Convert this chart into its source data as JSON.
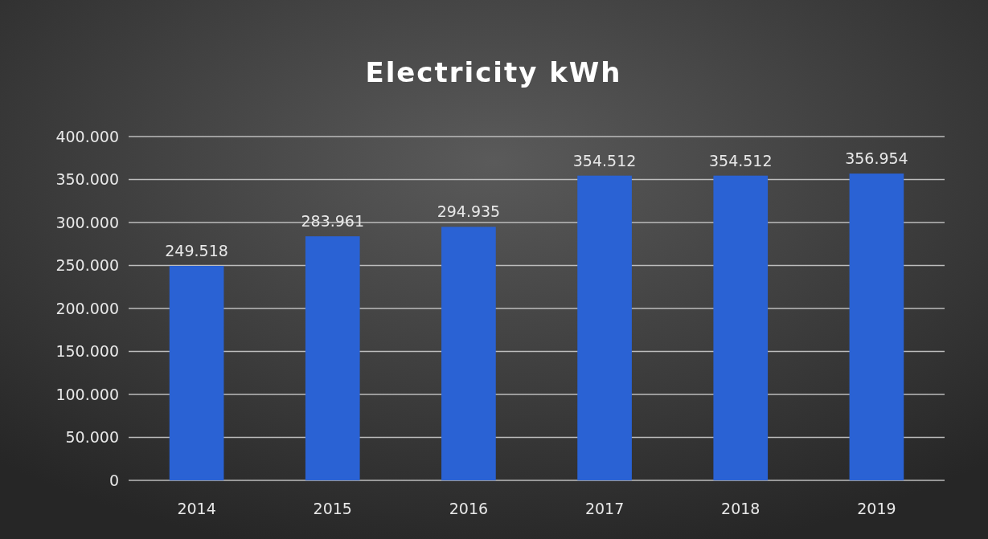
{
  "chart_data": {
    "type": "bar",
    "title": "Electricity kWh",
    "categories": [
      "2014",
      "2015",
      "2016",
      "2017",
      "2018",
      "2019"
    ],
    "values": [
      249518,
      283961,
      294935,
      354512,
      354512,
      356954
    ],
    "value_labels": [
      "249.518",
      "283.961",
      "294.935",
      "354.512",
      "354.512",
      "356.954"
    ],
    "color": "#2a62d4",
    "ylim": [
      0,
      400000
    ],
    "yticks": [
      0,
      {
        "value": 50000,
        "label": "50.000"
      },
      {
        "value": 100000,
        "label": "100.000"
      },
      {
        "value": 150000,
        "label": "150.000"
      },
      {
        "value": 200000,
        "label": "200.000"
      },
      {
        "value": 250000,
        "label": "250.000"
      },
      {
        "value": 300000,
        "label": "300.000"
      },
      {
        "value": 350000,
        "label": "350.000"
      },
      {
        "value": 400000,
        "label": "400.000"
      }
    ],
    "grid": "y"
  }
}
